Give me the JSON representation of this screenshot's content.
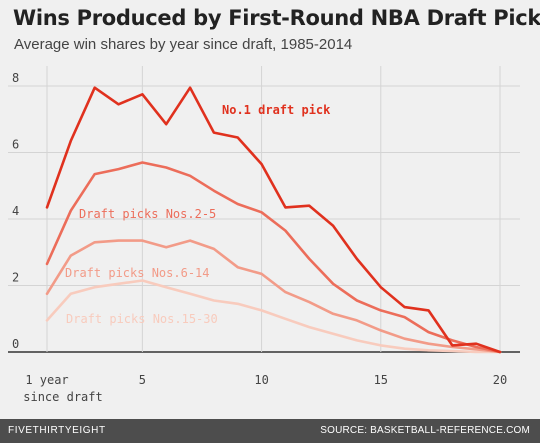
{
  "title": "Wins Produced by First-Round NBA Draft Picks",
  "subtitle": "Average win shares by year since draft, 1985-2014",
  "footer": {
    "brand": "FIVETHIRTYEIGHT",
    "source": "SOURCE: BASKETBALL-REFERENCE.COM"
  },
  "chart_data": {
    "type": "line",
    "x_tick_labels": [
      "1 year",
      "5",
      "10",
      "15",
      "20"
    ],
    "x_tick_values": [
      1,
      5,
      10,
      15,
      20
    ],
    "x_first_tick_sublabel": "since draft",
    "y_tick_labels": [
      "0",
      "2",
      "4",
      "6",
      "8"
    ],
    "y_tick_values": [
      0,
      2,
      4,
      6,
      8
    ],
    "xlim": [
      1,
      20
    ],
    "ylim": [
      0,
      8
    ],
    "grid": true,
    "x": [
      1,
      2,
      3,
      4,
      5,
      6,
      7,
      8,
      9,
      10,
      11,
      12,
      13,
      14,
      15,
      16,
      17,
      18,
      19,
      20
    ],
    "series": [
      {
        "name": "No.1 draft pick",
        "color": "#e0311e",
        "values": [
          4.35,
          6.35,
          7.95,
          7.45,
          7.75,
          6.85,
          7.95,
          6.6,
          6.45,
          5.65,
          4.35,
          4.4,
          3.8,
          2.8,
          1.95,
          1.35,
          1.25,
          0.2,
          0.25,
          0.0
        ]
      },
      {
        "name": "Draft picks Nos.2-5",
        "color": "#ec6d5a",
        "values": [
          2.65,
          4.25,
          5.35,
          5.5,
          5.7,
          5.55,
          5.3,
          4.85,
          4.45,
          4.2,
          3.65,
          2.8,
          2.05,
          1.55,
          1.25,
          1.05,
          0.6,
          0.35,
          0.15,
          0.0
        ]
      },
      {
        "name": "Draft picks Nos.6-14",
        "color": "#f29b88",
        "values": [
          1.75,
          2.9,
          3.3,
          3.35,
          3.35,
          3.15,
          3.35,
          3.1,
          2.55,
          2.35,
          1.8,
          1.5,
          1.15,
          0.95,
          0.65,
          0.4,
          0.25,
          0.15,
          0.08,
          0.0
        ]
      },
      {
        "name": "Draft picks Nos.15-30",
        "color": "#f8cbbd",
        "values": [
          0.95,
          1.75,
          1.95,
          2.05,
          2.15,
          1.95,
          1.75,
          1.55,
          1.45,
          1.25,
          1.0,
          0.75,
          0.55,
          0.35,
          0.2,
          0.1,
          0.05,
          0.03,
          0.0,
          0.0
        ]
      }
    ]
  }
}
